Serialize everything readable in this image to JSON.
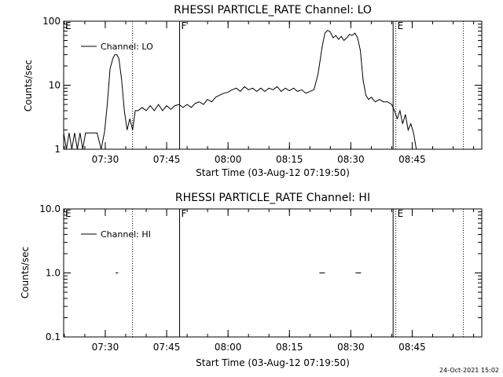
{
  "footer": {
    "timestamp": "24-Oct-2021 15:02"
  },
  "chart_data": [
    {
      "type": "line",
      "title": "RHESSI PARTICLE_RATE Channel: LO",
      "xlabel": "Start Time (03-Aug-12 07:19:50)",
      "ylabel": "Counts/sec",
      "yscale": "log",
      "xlim": [
        "07:19:50",
        "09:02:00"
      ],
      "ylim": [
        1,
        100
      ],
      "xticks": [
        "07:30",
        "07:45",
        "08:00",
        "08:15",
        "08:30",
        "08:45"
      ],
      "yticks": [
        "1",
        "10",
        "100"
      ],
      "legend": {
        "position": "top-left",
        "entries": [
          "Channel: LO"
        ]
      },
      "markers": [
        {
          "label": "E",
          "time": "07:19:50",
          "style": "solid"
        },
        {
          "label": "",
          "time": "07:36:40",
          "style": "dotted"
        },
        {
          "label": "F",
          "time": "07:48:10",
          "style": "solid"
        },
        {
          "label": "",
          "time": "08:40:20",
          "style": "solid"
        },
        {
          "label": "E",
          "time": "08:41:00",
          "style": "dotted"
        },
        {
          "label": "",
          "time": "08:57:30",
          "style": "dotted"
        }
      ],
      "series": [
        {
          "name": "Channel: LO",
          "points": [
            [
              "07:19:50",
              1.8
            ],
            [
              "07:20:30",
              1.0
            ],
            [
              "07:21:10",
              1.8
            ],
            [
              "07:21:50",
              1.0
            ],
            [
              "07:22:30",
              1.8
            ],
            [
              "07:23:10",
              1.0
            ],
            [
              "07:23:50",
              1.8
            ],
            [
              "07:24:30",
              1.0
            ],
            [
              "07:25:10",
              1.8
            ],
            [
              "07:25:50",
              1.8
            ],
            [
              "07:26:30",
              1.8
            ],
            [
              "07:27:10",
              1.8
            ],
            [
              "07:28:00",
              1.8
            ],
            [
              "07:29:00",
              1.0
            ],
            [
              "07:29:50",
              1.9
            ],
            [
              "07:30:30",
              5
            ],
            [
              "07:31:10",
              18
            ],
            [
              "07:31:50",
              26
            ],
            [
              "07:32:20",
              30
            ],
            [
              "07:32:50",
              30
            ],
            [
              "07:33:20",
              26
            ],
            [
              "07:34:00",
              12
            ],
            [
              "07:34:40",
              4
            ],
            [
              "07:35:20",
              2.0
            ],
            [
              "07:36:00",
              3.0
            ],
            [
              "07:36:40",
              2.0
            ],
            [
              "07:37:20",
              4.0
            ],
            [
              "07:38:00",
              4.0
            ],
            [
              "07:39:00",
              4.5
            ],
            [
              "07:40:00",
              4.0
            ],
            [
              "07:41:00",
              4.8
            ],
            [
              "07:42:00",
              4.0
            ],
            [
              "07:43:00",
              5.0
            ],
            [
              "07:44:00",
              4.0
            ],
            [
              "07:45:00",
              4.8
            ],
            [
              "07:46:00",
              4.2
            ],
            [
              "07:47:00",
              4.8
            ],
            [
              "07:48:00",
              5.0
            ],
            [
              "07:49:00",
              4.5
            ],
            [
              "07:50:00",
              5.0
            ],
            [
              "07:51:00",
              4.5
            ],
            [
              "07:52:00",
              5.2
            ],
            [
              "07:53:00",
              5.5
            ],
            [
              "07:54:00",
              5.0
            ],
            [
              "07:55:00",
              6.0
            ],
            [
              "07:56:00",
              5.5
            ],
            [
              "07:57:00",
              6.5
            ],
            [
              "07:58:00",
              7.0
            ],
            [
              "07:59:00",
              7.5
            ],
            [
              "08:00:00",
              7.8
            ],
            [
              "08:01:00",
              8.5
            ],
            [
              "08:02:00",
              9.0
            ],
            [
              "08:03:00",
              8.0
            ],
            [
              "08:04:00",
              9.5
            ],
            [
              "08:05:00",
              8.5
            ],
            [
              "08:06:00",
              9.0
            ],
            [
              "08:07:00",
              8.0
            ],
            [
              "08:08:00",
              9.0
            ],
            [
              "08:09:00",
              8.0
            ],
            [
              "08:10:00",
              9.0
            ],
            [
              "08:11:00",
              8.5
            ],
            [
              "08:12:00",
              9.5
            ],
            [
              "08:13:00",
              8.0
            ],
            [
              "08:14:00",
              9.0
            ],
            [
              "08:15:00",
              8.2
            ],
            [
              "08:16:00",
              9.0
            ],
            [
              "08:17:00",
              8.0
            ],
            [
              "08:18:00",
              8.5
            ],
            [
              "08:19:00",
              7.5
            ],
            [
              "08:20:00",
              8.0
            ],
            [
              "08:21:00",
              8.5
            ],
            [
              "08:22:00",
              15
            ],
            [
              "08:23:00",
              40
            ],
            [
              "08:23:40",
              65
            ],
            [
              "08:24:20",
              72
            ],
            [
              "08:25:00",
              68
            ],
            [
              "08:25:40",
              55
            ],
            [
              "08:26:20",
              60
            ],
            [
              "08:27:00",
              52
            ],
            [
              "08:27:40",
              58
            ],
            [
              "08:28:20",
              50
            ],
            [
              "08:29:00",
              55
            ],
            [
              "08:29:40",
              62
            ],
            [
              "08:30:20",
              60
            ],
            [
              "08:31:00",
              65
            ],
            [
              "08:31:40",
              55
            ],
            [
              "08:32:20",
              35
            ],
            [
              "08:33:00",
              12
            ],
            [
              "08:33:40",
              7
            ],
            [
              "08:34:20",
              6.0
            ],
            [
              "08:35:00",
              6.5
            ],
            [
              "08:36:00",
              5.5
            ],
            [
              "08:37:00",
              6.0
            ],
            [
              "08:38:00",
              5.5
            ],
            [
              "08:39:00",
              5.5
            ],
            [
              "08:40:00",
              5.0
            ],
            [
              "08:40:40",
              4.0
            ],
            [
              "08:41:20",
              3.0
            ],
            [
              "08:42:00",
              4.0
            ],
            [
              "08:42:40",
              2.5
            ],
            [
              "08:43:20",
              3.5
            ],
            [
              "08:44:00",
              2.0
            ],
            [
              "08:44:40",
              2.5
            ],
            [
              "08:45:20",
              1.8
            ],
            [
              "08:46:00",
              1.0
            ]
          ]
        }
      ]
    },
    {
      "type": "line",
      "title": "RHESSI PARTICLE_RATE Channel: HI",
      "xlabel": "Start Time (03-Aug-12 07:19:50)",
      "ylabel": "Counts/sec",
      "yscale": "log",
      "xlim": [
        "07:19:50",
        "09:02:00"
      ],
      "ylim": [
        0.1,
        10
      ],
      "xticks": [
        "07:30",
        "07:45",
        "08:00",
        "08:15",
        "08:30",
        "08:45"
      ],
      "yticks": [
        "0.1",
        "1.0",
        "10.0"
      ],
      "legend": {
        "position": "top-left",
        "entries": [
          "Channel: HI"
        ]
      },
      "markers": [
        {
          "label": "E",
          "time": "07:19:50",
          "style": "solid"
        },
        {
          "label": "",
          "time": "07:36:40",
          "style": "dotted"
        },
        {
          "label": "F",
          "time": "07:48:10",
          "style": "solid"
        },
        {
          "label": "",
          "time": "08:40:20",
          "style": "solid"
        },
        {
          "label": "E",
          "time": "08:41:00",
          "style": "dotted"
        },
        {
          "label": "",
          "time": "08:57:30",
          "style": "dotted"
        }
      ],
      "series": [
        {
          "name": "Channel: HI",
          "segments": [
            [
              [
                "07:32:30",
                1.0
              ],
              [
                "07:33:10",
                1.0
              ]
            ],
            [
              [
                "08:22:20",
                1.0
              ],
              [
                "08:23:40",
                1.0
              ]
            ],
            [
              [
                "08:31:10",
                1.0
              ],
              [
                "08:32:30",
                1.0
              ]
            ]
          ]
        }
      ]
    }
  ]
}
